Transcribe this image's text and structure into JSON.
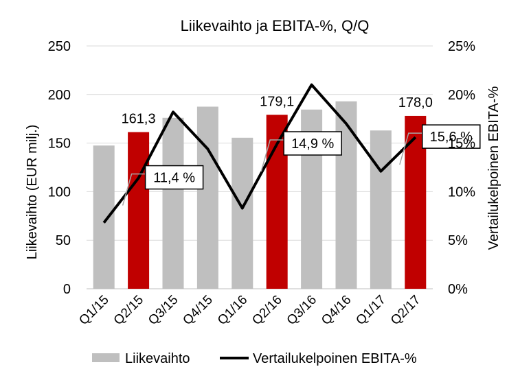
{
  "chart_data": {
    "type": "bar",
    "title": "Liikevaihto ja EBITA-%, Q/Q",
    "categories": [
      "Q1/15",
      "Q2/15",
      "Q3/15",
      "Q4/15",
      "Q1/16",
      "Q2/16",
      "Q3/16",
      "Q4/16",
      "Q1/17",
      "Q2/17"
    ],
    "series": [
      {
        "name": "Liikevaihto",
        "type": "bar",
        "axis": "left",
        "values": [
          147.5,
          161.3,
          176,
          187.5,
          155.5,
          179.1,
          184.5,
          193,
          163,
          178.0
        ],
        "colors": [
          "#BFBFBF",
          "#C00000",
          "#BFBFBF",
          "#BFBFBF",
          "#BFBFBF",
          "#C00000",
          "#BFBFBF",
          "#BFBFBF",
          "#BFBFBF",
          "#C00000"
        ]
      },
      {
        "name": "Vertailukelpoinen EBITA-%",
        "type": "line",
        "axis": "right",
        "values": [
          6.8,
          11.4,
          18.2,
          14.4,
          8.3,
          14.9,
          21.0,
          17.0,
          12.1,
          15.6
        ],
        "color": "#000000"
      }
    ],
    "ylabel": "Liikevaihto (EUR milj.)",
    "ylabel_right": "Vertailukelpoinen  EBITA-%",
    "ylim": [
      0,
      250
    ],
    "yticks": [
      "0",
      "50",
      "100",
      "150",
      "200",
      "250"
    ],
    "ylim_right": [
      0,
      25
    ],
    "yticks_right": [
      "0%",
      "5%",
      "10%",
      "15%",
      "20%",
      "25%"
    ],
    "grid": true,
    "bar_labels": [
      {
        "index": 1,
        "text": "161,3"
      },
      {
        "index": 5,
        "text": "179,1"
      },
      {
        "index": 9,
        "text": "178,0"
      }
    ],
    "callouts": [
      {
        "index": 1,
        "text": "11,4 %"
      },
      {
        "index": 5,
        "text": "14,9 %"
      },
      {
        "index": 9,
        "text": "15,6 %"
      }
    ],
    "legend": {
      "position": "bottom",
      "items": [
        {
          "label": "Liikevaihto",
          "color": "#BFBFBF",
          "kind": "bar"
        },
        {
          "label": "Vertailukelpoinen EBITA-%",
          "color": "#000000",
          "kind": "line"
        }
      ]
    }
  }
}
